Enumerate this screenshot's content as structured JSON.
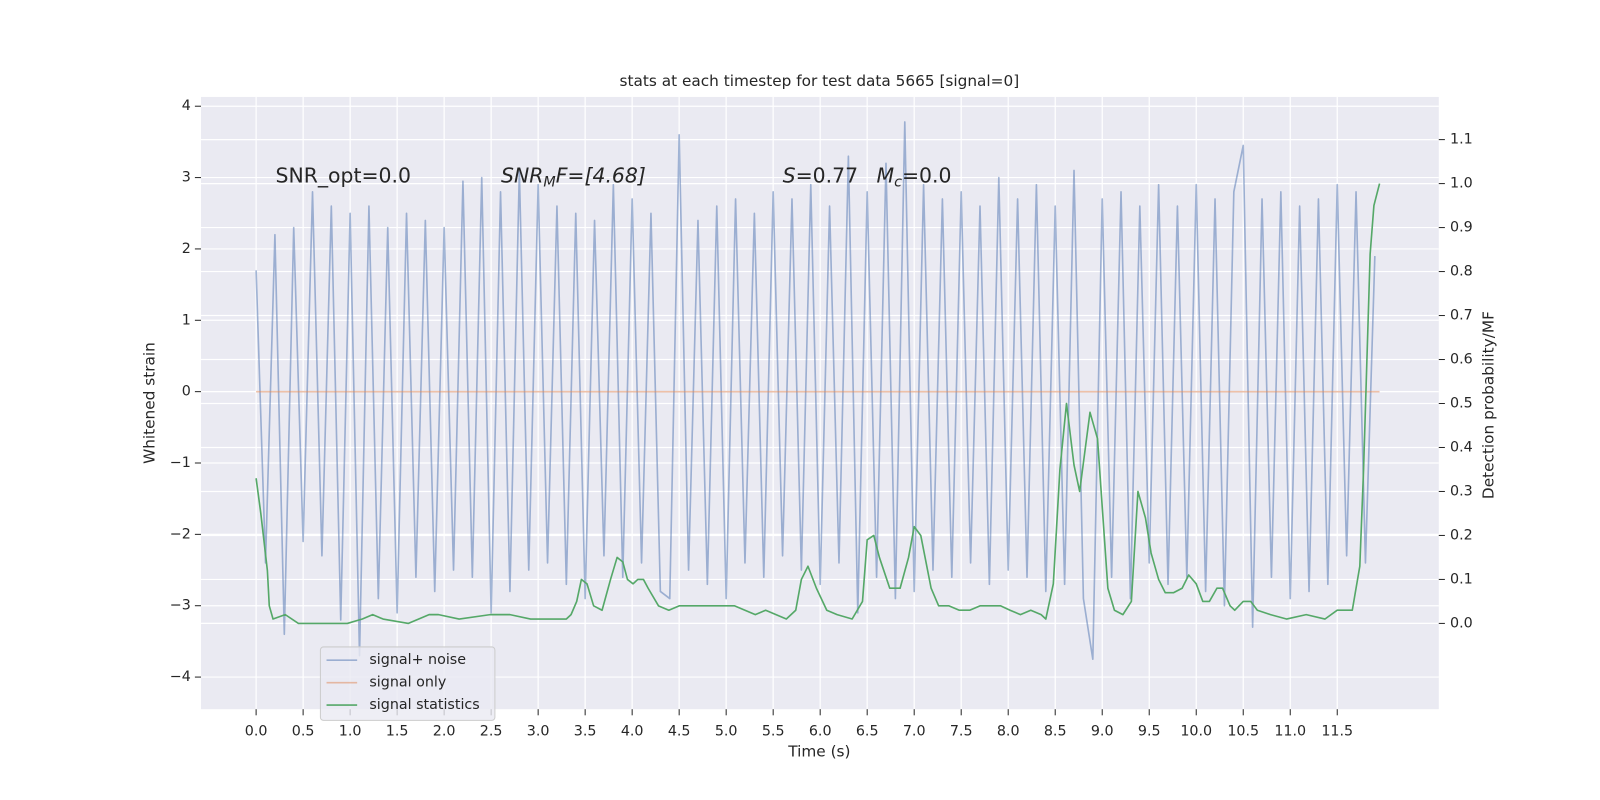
{
  "chart_data": {
    "type": "line",
    "title": "stats at each timestep for test data 5665 [signal=0]",
    "xlabel": "Time (s)",
    "ylabel": "Whitened strain",
    "y2label": "Detection probability/MF",
    "annotations": [
      "SNR_opt=0.0",
      {
        "base": "SNR",
        "sub": "M",
        "tail": "F=[4.68]"
      },
      {
        "base": "S",
        "tail": "=0.77"
      },
      {
        "base": "M",
        "sub": "c",
        "tail": "=0.0"
      }
    ],
    "xlim": [
      -0.586,
      12.58
    ],
    "ylim": [
      -4.45,
      4.13
    ],
    "y2lim": [
      -0.195,
      1.197
    ],
    "xticks": [
      {
        "value": 0,
        "label": "0.0"
      },
      0.5,
      {
        "value": 1,
        "label": "1.0"
      },
      1.5,
      {
        "value": 2,
        "label": "2.0"
      },
      2.5,
      {
        "value": 3,
        "label": "3.0"
      },
      3.5,
      {
        "value": 4,
        "label": "4.0"
      },
      4.5,
      {
        "value": 5,
        "label": "5.0"
      },
      5.5,
      {
        "value": 6,
        "label": "6.0"
      },
      6.5,
      {
        "value": 7,
        "label": "7.0"
      },
      7.5,
      {
        "value": 8,
        "label": "8.0"
      },
      8.5,
      {
        "value": 9,
        "label": "9.0"
      },
      9.5,
      {
        "value": 10,
        "label": "10.0"
      },
      10.5,
      {
        "value": 11,
        "label": "11.0"
      },
      11.5
    ],
    "yticks": [
      {
        "value": -4,
        "label": "−4"
      },
      {
        "value": -3,
        "label": "−3"
      },
      {
        "value": -2,
        "label": "−2"
      },
      {
        "value": -1,
        "label": "−1"
      },
      0,
      1,
      2,
      3,
      4
    ],
    "y2ticks": [
      {
        "value": 0,
        "label": "0.0"
      },
      0.1,
      0.2,
      0.3,
      0.4,
      0.5,
      0.6,
      0.7,
      0.8,
      0.9,
      {
        "value": 1,
        "label": "1.0"
      },
      1.1
    ],
    "grid": true,
    "legend": "lower left",
    "series": [
      {
        "name": "signal+ noise",
        "color": "#4c72b0",
        "alpha": 0.5,
        "x": [
          0.0,
          0.1,
          0.2,
          0.3,
          0.4,
          0.5,
          0.6,
          0.7,
          0.8,
          0.9,
          1.0,
          1.1,
          1.2,
          1.3,
          1.4,
          1.5,
          1.6,
          1.7,
          1.8,
          1.9,
          2.0,
          2.1,
          2.2,
          2.3,
          2.4,
          2.5,
          2.6,
          2.7,
          2.8,
          2.9,
          3.0,
          3.1,
          3.2,
          3.3,
          3.4,
          3.5,
          3.6,
          3.7,
          3.8,
          3.9,
          4.0,
          4.1,
          4.2,
          4.3,
          4.4,
          4.5,
          4.6,
          4.7,
          4.8,
          4.9,
          5.0,
          5.1,
          5.2,
          5.3,
          5.4,
          5.5,
          5.6,
          5.7,
          5.8,
          5.9,
          6.0,
          6.1,
          6.2,
          6.3,
          6.4,
          6.5,
          6.6,
          6.7,
          6.8,
          6.9,
          7.0,
          7.1,
          7.2,
          7.3,
          7.4,
          7.5,
          7.6,
          7.7,
          7.8,
          7.9,
          8.0,
          8.1,
          8.2,
          8.3,
          8.4,
          8.5,
          8.6,
          8.7,
          8.8,
          8.9,
          9.0,
          9.1,
          9.2,
          9.3,
          9.4,
          9.5,
          9.6,
          9.7,
          9.8,
          9.9,
          10.0,
          10.1,
          10.2,
          10.3,
          10.4,
          10.5,
          10.6,
          10.7,
          10.8,
          10.9,
          11.0,
          11.1,
          11.2,
          11.3,
          11.4,
          11.5,
          11.6,
          11.7,
          11.8,
          11.9
        ],
        "values": [
          1.7,
          -2.4,
          2.2,
          -3.4,
          2.3,
          -2.1,
          2.8,
          -2.3,
          2.6,
          -3.2,
          2.5,
          -3.7,
          2.6,
          -2.9,
          2.3,
          -3.1,
          2.5,
          -2.6,
          2.4,
          -2.8,
          2.3,
          -2.5,
          2.95,
          -2.6,
          3.0,
          -3.1,
          2.8,
          -2.8,
          3.1,
          -2.5,
          2.9,
          -2.4,
          2.6,
          -2.7,
          2.5,
          -2.9,
          2.4,
          -2.3,
          2.9,
          -2.6,
          2.7,
          -2.4,
          2.5,
          -2.8,
          -2.9,
          3.6,
          -2.5,
          2.4,
          -2.7,
          2.6,
          -2.9,
          2.7,
          -2.4,
          2.5,
          -2.6,
          2.8,
          -2.3,
          2.7,
          -2.5,
          2.9,
          -2.7,
          2.6,
          -2.4,
          3.3,
          -3.1,
          2.8,
          -2.6,
          3.2,
          -2.9,
          3.78,
          -2.8,
          2.9,
          -2.5,
          2.7,
          -2.6,
          2.8,
          -2.4,
          2.6,
          -2.7,
          3.0,
          -2.5,
          2.7,
          -2.6,
          2.9,
          -2.8,
          2.6,
          -2.7,
          3.1,
          -2.9,
          -3.75,
          2.7,
          -2.6,
          2.8,
          -2.9,
          2.6,
          -2.4,
          2.9,
          -2.7,
          2.6,
          -2.6,
          2.9,
          -2.8,
          2.7,
          -3.0,
          2.8,
          3.45,
          -3.3,
          2.7,
          -2.6,
          2.8,
          -2.9,
          2.6,
          -2.8,
          2.7,
          -2.7,
          2.9,
          -2.3,
          2.8,
          -2.4,
          1.9
        ]
      },
      {
        "name": "signal only",
        "color": "#dd8452",
        "alpha": 0.5,
        "x": [
          0.0,
          11.95
        ],
        "values": [
          0,
          0
        ]
      },
      {
        "name": "signal statistics",
        "color": "#55a868",
        "alpha": 1,
        "axis": "y2",
        "x": [
          0.0,
          0.05,
          0.12,
          0.14,
          0.18,
          0.31,
          0.45,
          0.97,
          1.13,
          1.24,
          1.35,
          1.62,
          1.73,
          1.84,
          1.94,
          2.16,
          2.49,
          2.7,
          2.92,
          3.14,
          3.3,
          3.35,
          3.41,
          3.46,
          3.52,
          3.59,
          3.68,
          3.77,
          3.84,
          3.9,
          3.95,
          4.01,
          4.06,
          4.12,
          4.17,
          4.28,
          4.39,
          4.5,
          4.66,
          4.88,
          4.98,
          5.09,
          5.2,
          5.31,
          5.42,
          5.64,
          5.74,
          5.8,
          5.87,
          5.96,
          6.07,
          6.18,
          6.34,
          6.45,
          6.5,
          6.57,
          6.63,
          6.74,
          6.85,
          6.94,
          7.0,
          7.07,
          7.18,
          7.26,
          7.37,
          7.48,
          7.59,
          7.7,
          7.92,
          8.02,
          8.13,
          8.24,
          8.35,
          8.4,
          8.48,
          8.55,
          8.62,
          8.7,
          8.76,
          8.87,
          8.95,
          9.06,
          9.13,
          9.22,
          9.31,
          9.38,
          9.46,
          9.52,
          9.6,
          9.67,
          9.76,
          9.85,
          9.92,
          10.0,
          10.07,
          10.14,
          10.22,
          10.28,
          10.36,
          10.41,
          10.5,
          10.58,
          10.65,
          10.79,
          10.96,
          11.17,
          11.37,
          11.5,
          11.59,
          11.66,
          11.74,
          11.78,
          11.85,
          11.89,
          11.95
        ],
        "values": [
          0.33,
          0.25,
          0.12,
          0.04,
          0.01,
          0.02,
          0.0,
          0.0,
          0.01,
          0.02,
          0.01,
          0.0,
          0.01,
          0.02,
          0.02,
          0.01,
          0.02,
          0.02,
          0.01,
          0.01,
          0.01,
          0.02,
          0.05,
          0.1,
          0.09,
          0.04,
          0.03,
          0.1,
          0.15,
          0.14,
          0.1,
          0.09,
          0.1,
          0.1,
          0.08,
          0.04,
          0.03,
          0.04,
          0.04,
          0.04,
          0.04,
          0.04,
          0.03,
          0.02,
          0.03,
          0.01,
          0.03,
          0.1,
          0.13,
          0.08,
          0.03,
          0.02,
          0.01,
          0.05,
          0.19,
          0.2,
          0.15,
          0.08,
          0.08,
          0.15,
          0.22,
          0.2,
          0.08,
          0.04,
          0.04,
          0.03,
          0.03,
          0.04,
          0.04,
          0.03,
          0.02,
          0.03,
          0.02,
          0.01,
          0.09,
          0.35,
          0.5,
          0.36,
          0.3,
          0.48,
          0.42,
          0.08,
          0.03,
          0.02,
          0.05,
          0.3,
          0.24,
          0.16,
          0.1,
          0.07,
          0.07,
          0.08,
          0.11,
          0.09,
          0.05,
          0.05,
          0.08,
          0.08,
          0.04,
          0.03,
          0.05,
          0.05,
          0.03,
          0.02,
          0.01,
          0.02,
          0.01,
          0.03,
          0.03,
          0.03,
          0.13,
          0.35,
          0.84,
          0.95,
          1.0
        ]
      }
    ]
  }
}
